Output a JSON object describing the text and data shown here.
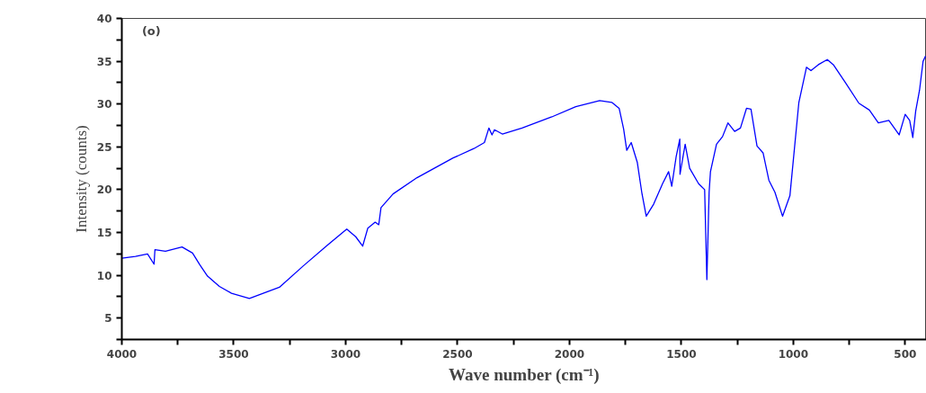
{
  "chart_data": {
    "type": "line",
    "xlabel": "Wave number (cm⁻¹)",
    "ylabel": "Intensity (counts)",
    "annotations": [
      "(o)"
    ],
    "x": [
      4000,
      3939,
      3885,
      3856,
      3852,
      3805,
      3731,
      3684,
      3651,
      3617,
      3564,
      3510,
      3430,
      3296,
      3189,
      3082,
      2995,
      2955,
      2924,
      2901,
      2868,
      2852,
      2842,
      2788,
      2681,
      2520,
      2427,
      2380,
      2360,
      2346,
      2335,
      2300,
      2212,
      2079,
      1972,
      1865,
      1811,
      1778,
      1758,
      1744,
      1724,
      1697,
      1677,
      1657,
      1624,
      1584,
      1557,
      1543,
      1523,
      1507,
      1506,
      1483,
      1463,
      1423,
      1396,
      1386,
      1376,
      1370,
      1343,
      1316,
      1292,
      1262,
      1236,
      1209,
      1189,
      1162,
      1135,
      1109,
      1082,
      1048,
      1015,
      975,
      941,
      921,
      888,
      848,
      821,
      767,
      707,
      660,
      620,
      573,
      527,
      500,
      480,
      466,
      453,
      436,
      420,
      409
    ],
    "series": [
      {
        "color": "#0000ff",
        "values": [
          12.0,
          12.2,
          12.5,
          11.3,
          13.0,
          12.8,
          13.3,
          12.6,
          11.2,
          9.9,
          8.7,
          7.9,
          7.3,
          8.6,
          11.1,
          13.5,
          15.4,
          14.5,
          13.4,
          15.5,
          16.2,
          15.9,
          17.9,
          19.5,
          21.4,
          23.7,
          24.8,
          25.5,
          27.2,
          26.4,
          27.0,
          26.5,
          27.2,
          28.5,
          29.7,
          30.4,
          30.2,
          29.5,
          27.1,
          24.6,
          25.5,
          23.2,
          19.7,
          16.9,
          18.3,
          20.7,
          22.1,
          20.4,
          23.9,
          25.9,
          21.8,
          25.3,
          22.5,
          20.7,
          20.0,
          9.5,
          19.7,
          22.1,
          25.3,
          26.2,
          27.8,
          26.8,
          27.2,
          29.5,
          29.4,
          25.1,
          24.3,
          21.1,
          19.7,
          16.9,
          19.3,
          30.2,
          34.3,
          33.9,
          34.6,
          35.2,
          34.6,
          32.5,
          30.1,
          29.3,
          27.8,
          28.1,
          26.4,
          28.8,
          28.1,
          26.1,
          29.2,
          31.6,
          35.0,
          35.6
        ]
      }
    ],
    "xlim": [
      4000,
      405
    ],
    "ylim": [
      2.5,
      40
    ],
    "xticks": [
      4000,
      {
        "value": 3750,
        "label": null
      },
      3500,
      {
        "value": 3250,
        "label": null
      },
      3000,
      {
        "value": 2750,
        "label": null
      },
      2500,
      {
        "value": 2250,
        "label": null
      },
      2000,
      {
        "value": 1750,
        "label": null
      },
      1500,
      {
        "value": 1250,
        "label": null
      },
      1000,
      {
        "value": 750,
        "label": null
      },
      500
    ],
    "yticks": [
      {
        "value": 2.5,
        "label": null
      },
      5,
      {
        "value": 7.5,
        "label": null
      },
      10,
      {
        "value": 12.5,
        "label": null
      },
      15,
      {
        "value": 17.5,
        "label": null
      },
      20,
      {
        "value": 22.5,
        "label": null
      },
      25,
      {
        "value": 27.5,
        "label": null
      },
      30,
      {
        "value": 32.5,
        "label": null
      },
      35,
      {
        "value": 37.5,
        "label": null
      },
      40
    ],
    "grid": false,
    "marker": "none"
  }
}
